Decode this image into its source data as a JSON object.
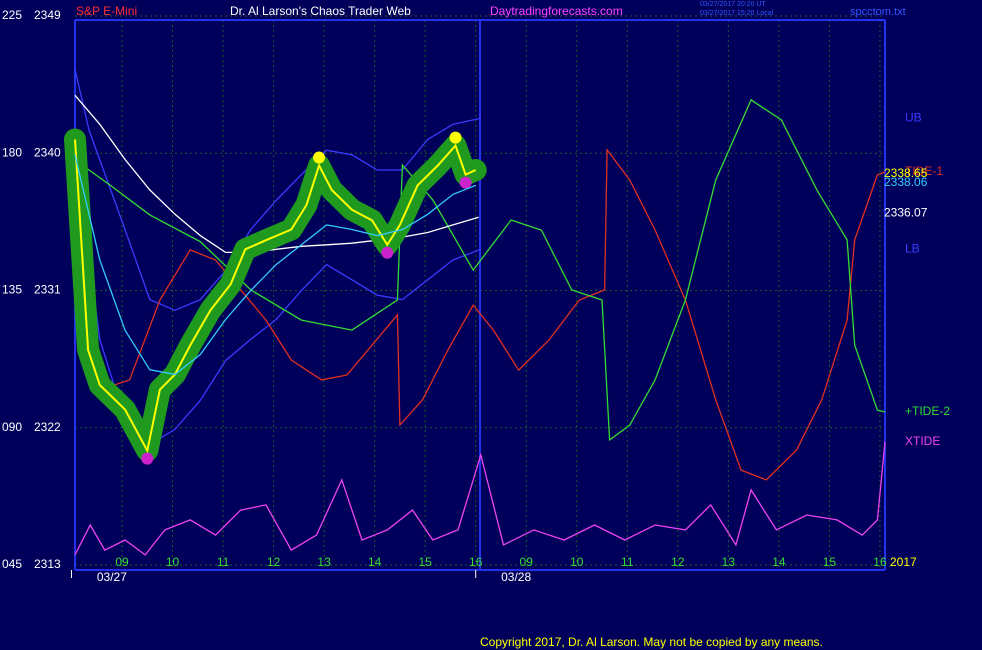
{
  "chart_data": {
    "type": "line",
    "instrument": "S&P E-Mini",
    "title": "Dr. Al Larson's Chaos Trader Web",
    "website": "Daytradingforecasts.com",
    "timestamps": [
      "03/27/2017 20:20 UT",
      "03/27/2017 15:20 Local"
    ],
    "file": "spcctom.txt",
    "copyright": "Copyright 2017, Dr. Al Larson. May not be copied by any means.",
    "year_label": "2017",
    "grid": true,
    "xlim": [
      0.07,
      16.1
    ],
    "xticks": [
      {
        "value": 1,
        "label": "09"
      },
      {
        "value": 2,
        "label": "10"
      },
      {
        "value": 3,
        "label": "11"
      },
      {
        "value": 4,
        "label": "12"
      },
      {
        "value": 5,
        "label": "13"
      },
      {
        "value": 6,
        "label": "14"
      },
      {
        "value": 7,
        "label": "15"
      },
      {
        "value": 8,
        "label": "16"
      },
      {
        "value": 9,
        "label": "09"
      },
      {
        "value": 10,
        "label": "10"
      },
      {
        "value": 11,
        "label": "11"
      },
      {
        "value": 12,
        "label": "12"
      },
      {
        "value": 13,
        "label": "13"
      },
      {
        "value": 14,
        "label": "14"
      },
      {
        "value": 15,
        "label": "15"
      },
      {
        "value": 16,
        "label": "16"
      }
    ],
    "dates": [
      {
        "value": 0.8,
        "label": "03/27"
      },
      {
        "value": 8.8,
        "label": "03/28"
      }
    ],
    "ylim": [
      2313,
      2349
    ],
    "yticks": [
      2313,
      2322,
      2331,
      2340,
      2349
    ],
    "y2lim": [
      45,
      225
    ],
    "y2ticks": [
      {
        "value": 45,
        "label": "045"
      },
      {
        "value": 90,
        "label": "090"
      },
      135,
      180,
      225
    ],
    "series": [
      {
        "color": "#3a3aff",
        "name": "UB",
        "x": [
          0.07,
          0.35,
          1.06,
          1.55,
          2.05,
          2.55,
          3.05,
          3.55,
          4.05,
          4.55,
          5.05,
          5.55,
          6.05,
          6.55,
          7.05,
          7.55,
          8.1
        ],
        "values": [
          2345.5,
          2341.5,
          2335,
          2330.4,
          2329.7,
          2330.4,
          2332.3,
          2335,
          2336.9,
          2338.6,
          2340.2,
          2339.9,
          2338.9,
          2338.9,
          2340.9,
          2341.9,
          2342.3
        ]
      },
      {
        "color": "#3a3aff",
        "name": "LB",
        "x": [
          0.07,
          0.56,
          1.06,
          1.55,
          2.05,
          2.55,
          3.05,
          3.55,
          4.05,
          4.55,
          5.05,
          5.55,
          6.05,
          6.55,
          7.05,
          7.55,
          8.1
        ],
        "values": [
          2340.2,
          2327.8,
          2322.5,
          2320.9,
          2321.9,
          2323.8,
          2326.4,
          2327.8,
          2329.1,
          2331,
          2332.7,
          2331.7,
          2330.7,
          2330.4,
          2331.7,
          2333,
          2333.7
        ]
      },
      {
        "color": "#e03020",
        "name": "TIDE-1",
        "axis": "y2",
        "x": [
          0.07,
          0.56,
          1.15,
          1.75,
          2.35,
          2.85,
          3.35,
          3.85,
          4.35,
          4.95,
          5.45,
          5.95,
          6.45,
          6.5,
          6.95,
          7.45,
          7.95,
          8.35,
          8.85,
          9.45,
          10.05,
          10.55,
          10.6,
          11.05,
          11.55,
          12.15,
          12.75,
          13.25,
          13.75,
          14.35,
          14.85,
          15.35,
          15.5,
          15.95,
          16.1
        ],
        "values": [
          177.8,
          102.4,
          105.7,
          131.9,
          148.3,
          145,
          135.2,
          125.3,
          112.2,
          105.7,
          107.3,
          117.1,
          127,
          90.9,
          99.2,
          115.5,
          130.2,
          122,
          108.9,
          118.8,
          131.9,
          135.2,
          181.1,
          171.2,
          154.8,
          131.9,
          99.2,
          76.1,
          72.9,
          82.7,
          99.2,
          125.3,
          151.6,
          172.9,
          173.9
        ]
      },
      {
        "color": "#33dd33",
        "name": "+TIDE-2",
        "axis": "y2",
        "x": [
          0.07,
          0.76,
          1.55,
          2.55,
          3.55,
          4.55,
          5.55,
          6.45,
          6.55,
          7.15,
          7.95,
          8.1,
          8.7,
          9.3,
          9.9,
          10.5,
          10.65,
          11.05,
          11.55,
          12.15,
          12.75,
          13.45,
          14.05,
          14.75,
          15.35,
          15.5,
          15.95,
          16.1
        ],
        "values": [
          177.8,
          169.6,
          159.8,
          151,
          135.2,
          125.3,
          122,
          131.9,
          176.1,
          164.7,
          141.7,
          145,
          158.1,
          154.8,
          135.2,
          131.9,
          86,
          90.9,
          105.7,
          131.9,
          171.2,
          197.5,
          190.9,
          168,
          151.6,
          117.1,
          95.8,
          95.2
        ]
      },
      {
        "color": "#ee44ee",
        "name": "XTIDE",
        "axis": "y2",
        "x": [
          0.07,
          0.37,
          0.66,
          1.06,
          1.46,
          1.85,
          2.35,
          2.85,
          3.35,
          3.85,
          4.35,
          4.85,
          5.35,
          5.75,
          6.25,
          6.75,
          7.15,
          7.65,
          8.1,
          8.55,
          9.15,
          9.75,
          10.35,
          10.95,
          11.55,
          12.15,
          12.65,
          13.15,
          13.45,
          13.95,
          14.55,
          15.15,
          15.65,
          15.95,
          16.1
        ],
        "values": [
          48.3,
          58.1,
          49.9,
          53.2,
          48.3,
          56.5,
          59.8,
          54.8,
          63,
          64.7,
          49.9,
          54.8,
          72.9,
          53.2,
          56.5,
          63,
          53.2,
          56.5,
          81.1,
          51.6,
          56.5,
          53.2,
          58.1,
          53.2,
          58.1,
          56.5,
          64.7,
          51.6,
          69.6,
          56.5,
          61.4,
          59.8,
          54.8,
          59.8,
          85.4
        ]
      },
      {
        "color": "#ffffff",
        "last_value": 2336.07,
        "x": [
          0.07,
          0.56,
          1.06,
          1.55,
          2.05,
          2.55,
          3.05,
          3.55,
          4.05,
          4.55,
          5.05,
          5.55,
          6.05,
          6.55,
          7.05,
          7.55,
          8.06
        ],
        "values": [
          2343.8,
          2341.9,
          2339.6,
          2337.6,
          2336,
          2334.6,
          2333.5,
          2333.5,
          2333.7,
          2333.9,
          2334,
          2334.1,
          2334.3,
          2334.5,
          2334.8,
          2335.3,
          2335.8
        ]
      },
      {
        "color": "#ffff00",
        "last_value": 2338.65,
        "halo": "#1f9a1f",
        "x": [
          0.07,
          0.33,
          0.56,
          1.06,
          1.5,
          1.75,
          2.05,
          2.35,
          2.75,
          3.15,
          3.44,
          3.85,
          4.35,
          4.65,
          4.9,
          5.15,
          5.55,
          5.95,
          6.25,
          6.5,
          6.85,
          7.25,
          7.6,
          7.8,
          8.0
        ],
        "values": [
          2340.9,
          2327.1,
          2324.8,
          2323.2,
          2320.5,
          2324.5,
          2325.5,
          2327.4,
          2329.7,
          2331.4,
          2333.7,
          2334.3,
          2335,
          2336.6,
          2339.2,
          2337.6,
          2336.3,
          2335.6,
          2334,
          2335.3,
          2337.9,
          2339.2,
          2340.5,
          2338.6,
          2338.9
        ]
      },
      {
        "color": "#33ccff",
        "last_value": 2338.06,
        "x": [
          0.07,
          0.56,
          1.06,
          1.55,
          2.05,
          2.55,
          3.05,
          3.55,
          4.05,
          4.55,
          5.05,
          5.55,
          6.05,
          6.55,
          7.05,
          7.55,
          8.0
        ],
        "values": [
          2339.9,
          2333,
          2328.4,
          2325.8,
          2325.5,
          2326.8,
          2329.1,
          2331,
          2332.7,
          2334,
          2335.3,
          2335,
          2334.6,
          2335,
          2336,
          2337.3,
          2337.9
        ]
      }
    ]
  }
}
